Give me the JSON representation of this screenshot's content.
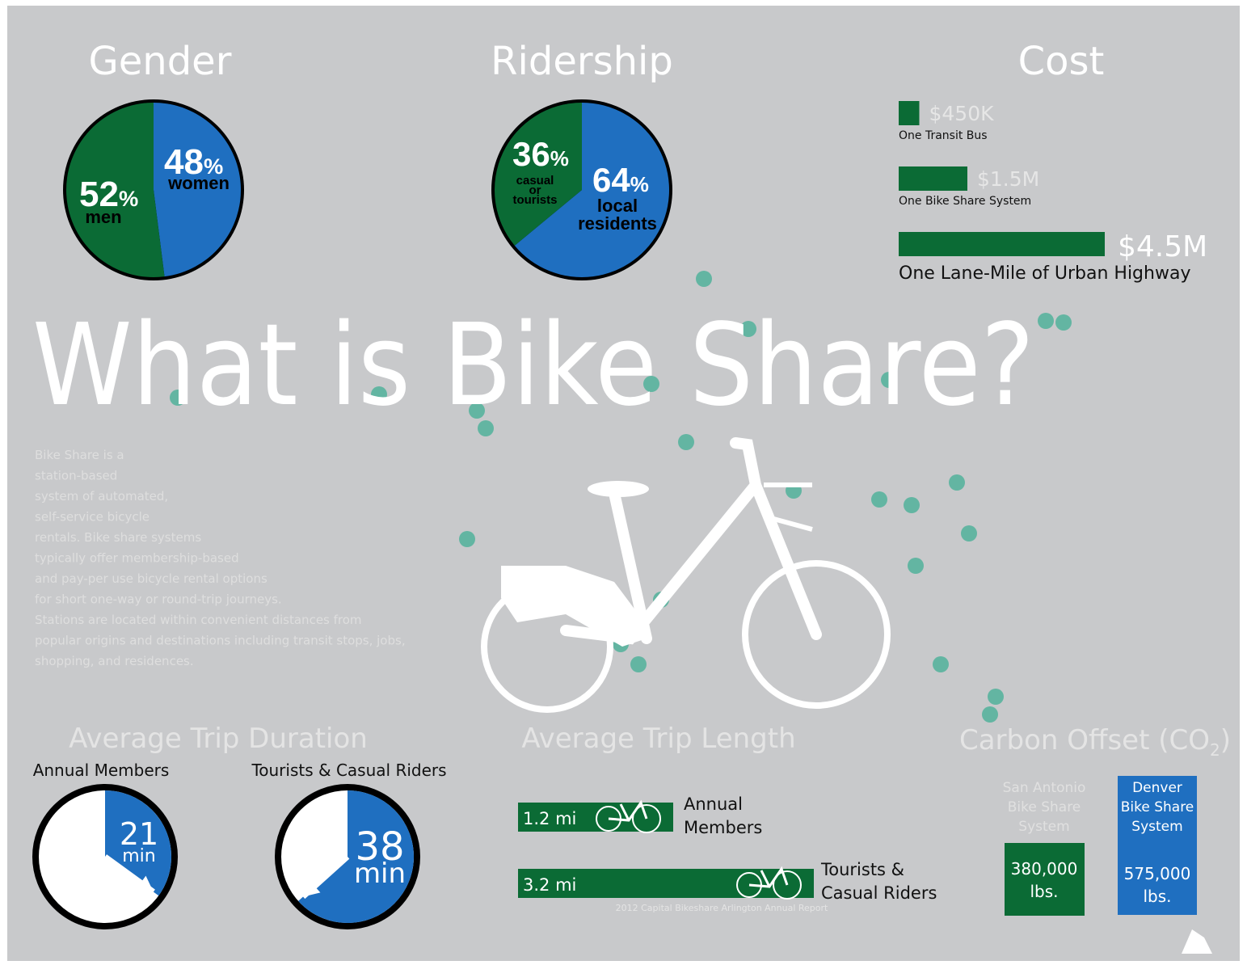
{
  "title": "What is Bike Share?",
  "description": [
    "Bike Share is a",
    "station-based",
    "system of automated,",
    "self-service bicycle",
    "rentals. Bike share systems",
    "typically offer membership-based",
    "and pay-per use bicycle rental options",
    "for short one-way or round-trip journeys.",
    "Stations are located within convenient distances from",
    "popular origins and destinations including transit stops, jobs,",
    "shopping, and residences."
  ],
  "gender": {
    "title": "Gender",
    "unit": "%",
    "values": [
      52,
      48
    ],
    "labels": [
      "men",
      "women"
    ]
  },
  "ridership": {
    "title": "Ridership",
    "unit": "%",
    "values": [
      36,
      64
    ],
    "labels": [
      [
        "casual",
        "or",
        "tourists"
      ],
      [
        "local",
        "residents"
      ]
    ]
  },
  "cost": {
    "title": "Cost",
    "items": [
      {
        "name": "One Transit Bus",
        "value": 450000,
        "value_label": "$450K"
      },
      {
        "name": "One Bike Share System",
        "value": 1500000,
        "value_label": "$1.5M"
      },
      {
        "name": "One Lane-Mile of Urban Highway",
        "value": 4500000,
        "value_label": "$4.5M"
      }
    ]
  },
  "trip_duration": {
    "title": "Average Trip Duration",
    "unit": "min",
    "items": [
      {
        "name": "Annual Members",
        "value": 21
      },
      {
        "name": "Tourists & Casual Riders",
        "value": 38
      }
    ]
  },
  "trip_length": {
    "title": "Average Trip Length",
    "items": [
      {
        "name": [
          "Annual",
          "Members"
        ],
        "value": 1.2,
        "value_label": "1.2 mi"
      },
      {
        "name": [
          "Tourists &",
          "Casual Riders"
        ],
        "value": 3.2,
        "value_label": "3.2 mi"
      }
    ],
    "source": "2012 Capital Bikeshare Arlington Annual Report"
  },
  "carbon": {
    "title": "Carbon Offset (CO",
    "subscript": "2",
    "title_end": ")",
    "items": [
      {
        "name": [
          "San Antonio",
          "Bike Share",
          "System"
        ],
        "amount": "380,000",
        "unit": "lbs."
      },
      {
        "name": [
          "Denver",
          "Bike Share",
          "System"
        ],
        "amount": "575,000",
        "unit": "lbs."
      }
    ]
  }
}
